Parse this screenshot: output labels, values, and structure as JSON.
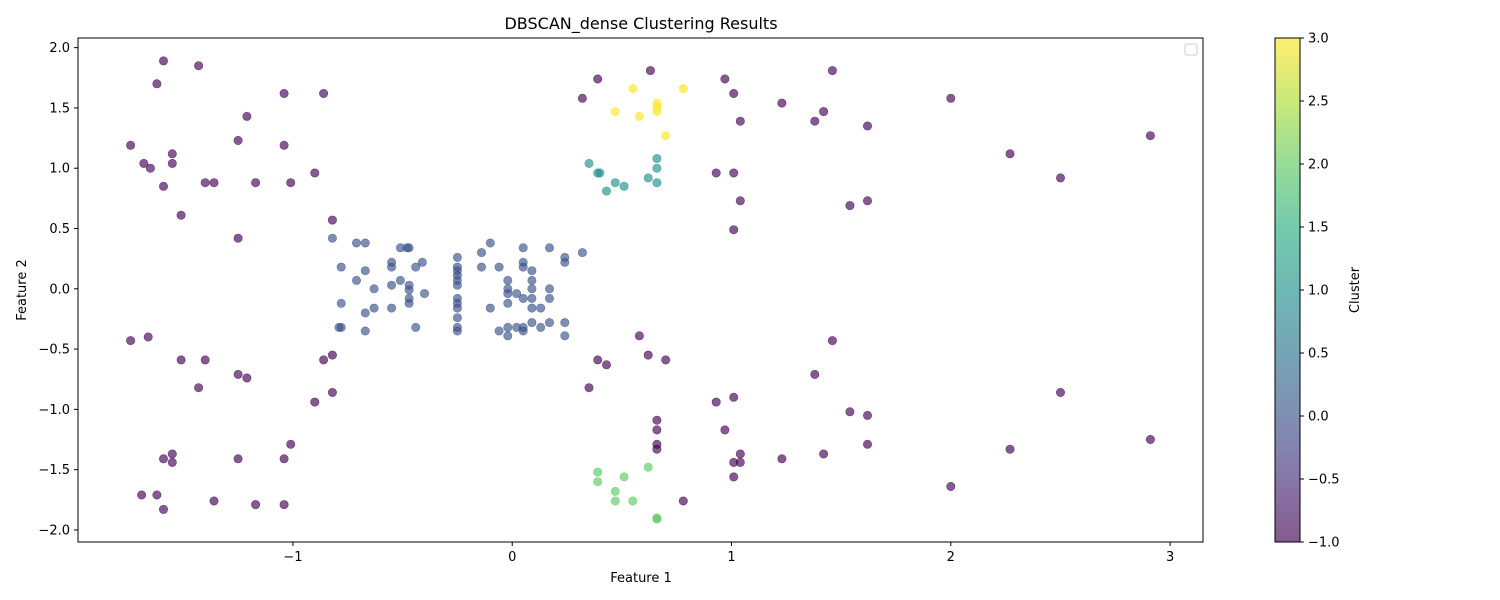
{
  "chart_data": {
    "type": "scatter",
    "title": "DBSCAN_dense Clustering Results",
    "xlabel": "Feature 1",
    "ylabel": "Feature 2",
    "xlim": [
      -1.98,
      3.15
    ],
    "ylim": [
      -2.1,
      2.08
    ],
    "xticks": [
      -1,
      0,
      1,
      2,
      3
    ],
    "yticks": [
      -2.0,
      -1.5,
      -1.0,
      -0.5,
      0.0,
      0.5,
      1.0,
      1.5,
      2.0
    ],
    "ytick_labels": [
      "−2.0",
      "−1.5",
      "−1.0",
      "−0.5",
      "0.0",
      "0.5",
      "1.0",
      "1.5",
      "2.0"
    ],
    "xtick_labels": [
      "−1",
      "0",
      "1",
      "2",
      "3"
    ],
    "grid": false,
    "legend": {
      "placement": "top-right",
      "entries": []
    },
    "colorbar": {
      "label": "Cluster",
      "range": [
        -1.0,
        3.0
      ],
      "ticks": [
        -1.0,
        -0.5,
        0.0,
        0.5,
        1.0,
        1.5,
        2.0,
        2.5,
        3.0
      ],
      "tick_labels": [
        "−1.0",
        "−0.5",
        "0.0",
        "0.5",
        "1.0",
        "1.5",
        "2.0",
        "2.5",
        "3.0"
      ],
      "colormap": "viridis"
    },
    "colors": {
      "-1": "#440154",
      "0": "#3b528b",
      "1": "#21918c",
      "2": "#5ec962",
      "3": "#fde725"
    },
    "marker_alpha": 0.65,
    "series": [
      {
        "cluster": -1,
        "points": [
          [
            -1.59,
            1.89
          ],
          [
            -1.43,
            1.85
          ],
          [
            -1.62,
            1.7
          ],
          [
            -1.21,
            1.43
          ],
          [
            -1.04,
            1.62
          ],
          [
            -0.86,
            1.62
          ],
          [
            -1.74,
            1.19
          ],
          [
            -1.55,
            1.12
          ],
          [
            -1.68,
            1.04
          ],
          [
            -1.55,
            1.04
          ],
          [
            -1.65,
            1.0
          ],
          [
            -1.25,
            1.23
          ],
          [
            -1.04,
            1.19
          ],
          [
            -0.9,
            0.96
          ],
          [
            -1.59,
            0.85
          ],
          [
            -1.4,
            0.88
          ],
          [
            -1.36,
            0.88
          ],
          [
            -1.17,
            0.88
          ],
          [
            -1.01,
            0.88
          ],
          [
            -1.51,
            0.61
          ],
          [
            -0.82,
            0.57
          ],
          [
            -1.25,
            0.42
          ],
          [
            0.39,
            1.74
          ],
          [
            0.63,
            1.81
          ],
          [
            0.32,
            1.58
          ],
          [
            0.97,
            1.74
          ],
          [
            1.01,
            1.62
          ],
          [
            1.23,
            1.54
          ],
          [
            1.42,
            1.47
          ],
          [
            1.38,
            1.39
          ],
          [
            1.04,
            1.39
          ],
          [
            1.46,
            1.81
          ],
          [
            1.62,
            1.35
          ],
          [
            2.0,
            1.58
          ],
          [
            2.91,
            1.27
          ],
          [
            2.27,
            1.12
          ],
          [
            2.5,
            0.92
          ],
          [
            0.93,
            0.96
          ],
          [
            1.01,
            0.96
          ],
          [
            1.04,
            0.73
          ],
          [
            1.54,
            0.69
          ],
          [
            1.62,
            0.73
          ],
          [
            1.01,
            0.49
          ],
          [
            -1.74,
            -0.43
          ],
          [
            -1.66,
            -0.4
          ],
          [
            -1.51,
            -0.59
          ],
          [
            -1.4,
            -0.59
          ],
          [
            -1.43,
            -0.82
          ],
          [
            -1.25,
            -0.71
          ],
          [
            -1.21,
            -0.74
          ],
          [
            -0.86,
            -0.59
          ],
          [
            -0.82,
            -0.55
          ],
          [
            -0.82,
            -0.86
          ],
          [
            -0.9,
            -0.94
          ],
          [
            -1.01,
            -1.29
          ],
          [
            -1.04,
            -1.41
          ],
          [
            -1.25,
            -1.41
          ],
          [
            -1.55,
            -1.37
          ],
          [
            -1.59,
            -1.41
          ],
          [
            -1.55,
            -1.44
          ],
          [
            -1.36,
            -1.76
          ],
          [
            -1.17,
            -1.79
          ],
          [
            -1.04,
            -1.79
          ],
          [
            -1.69,
            -1.71
          ],
          [
            -1.62,
            -1.71
          ],
          [
            -1.59,
            -1.83
          ],
          [
            0.58,
            -0.39
          ],
          [
            0.62,
            -0.55
          ],
          [
            0.39,
            -0.59
          ],
          [
            0.43,
            -0.63
          ],
          [
            0.7,
            -0.59
          ],
          [
            0.35,
            -0.82
          ],
          [
            1.46,
            -0.43
          ],
          [
            1.38,
            -0.71
          ],
          [
            2.5,
            -0.86
          ],
          [
            0.93,
            -0.94
          ],
          [
            1.01,
            -0.9
          ],
          [
            1.54,
            -1.02
          ],
          [
            1.62,
            -1.05
          ],
          [
            0.97,
            -1.17
          ],
          [
            0.66,
            -1.09
          ],
          [
            0.66,
            -1.17
          ],
          [
            0.66,
            -1.29
          ],
          [
            0.66,
            -1.33
          ],
          [
            1.04,
            -1.37
          ],
          [
            1.01,
            -1.44
          ],
          [
            1.04,
            -1.44
          ],
          [
            1.23,
            -1.41
          ],
          [
            1.42,
            -1.37
          ],
          [
            1.62,
            -1.29
          ],
          [
            1.01,
            -1.56
          ],
          [
            0.78,
            -1.76
          ],
          [
            2.27,
            -1.33
          ],
          [
            2.91,
            -1.25
          ],
          [
            2.0,
            -1.64
          ]
        ]
      },
      {
        "cluster": 0,
        "points": [
          [
            -0.82,
            0.42
          ],
          [
            -0.71,
            0.38
          ],
          [
            -0.67,
            0.38
          ],
          [
            -0.51,
            0.34
          ],
          [
            -0.47,
            0.34
          ],
          [
            -0.48,
            0.34
          ],
          [
            -0.78,
            0.18
          ],
          [
            -0.55,
            0.22
          ],
          [
            -0.55,
            0.18
          ],
          [
            -0.41,
            0.22
          ],
          [
            -0.44,
            0.18
          ],
          [
            -0.67,
            0.15
          ],
          [
            -0.71,
            0.07
          ],
          [
            -0.51,
            0.07
          ],
          [
            -0.55,
            0.03
          ],
          [
            -0.63,
            0.0
          ],
          [
            -0.47,
            0.03
          ],
          [
            -0.47,
            -0.01
          ],
          [
            -0.4,
            -0.04
          ],
          [
            -0.47,
            -0.08
          ],
          [
            -0.47,
            -0.12
          ],
          [
            -0.78,
            -0.12
          ],
          [
            -0.63,
            -0.16
          ],
          [
            -0.55,
            -0.16
          ],
          [
            -0.67,
            -0.2
          ],
          [
            -0.78,
            -0.32
          ],
          [
            -0.79,
            -0.32
          ],
          [
            -0.67,
            -0.35
          ],
          [
            -0.44,
            -0.32
          ],
          [
            -0.25,
            0.26
          ],
          [
            -0.25,
            0.18
          ],
          [
            -0.25,
            0.15
          ],
          [
            -0.25,
            0.11
          ],
          [
            -0.25,
            0.07
          ],
          [
            -0.25,
            0.03
          ],
          [
            -0.25,
            -0.08
          ],
          [
            -0.25,
            -0.12
          ],
          [
            -0.25,
            -0.16
          ],
          [
            -0.25,
            -0.24
          ],
          [
            -0.25,
            -0.32
          ],
          [
            -0.25,
            -0.35
          ],
          [
            -0.14,
            0.3
          ],
          [
            -0.1,
            0.38
          ],
          [
            -0.14,
            0.18
          ],
          [
            -0.06,
            0.18
          ],
          [
            -0.1,
            -0.16
          ],
          [
            -0.06,
            -0.35
          ],
          [
            0.05,
            0.34
          ],
          [
            0.17,
            0.34
          ],
          [
            0.24,
            0.26
          ],
          [
            0.24,
            0.22
          ],
          [
            0.32,
            0.3
          ],
          [
            0.05,
            0.22
          ],
          [
            0.05,
            0.18
          ],
          [
            0.09,
            0.15
          ],
          [
            -0.02,
            0.07
          ],
          [
            0.09,
            0.07
          ],
          [
            -0.02,
            0.0
          ],
          [
            -0.02,
            -0.04
          ],
          [
            0.02,
            -0.04
          ],
          [
            0.09,
            0.0
          ],
          [
            0.17,
            0.0
          ],
          [
            0.05,
            -0.08
          ],
          [
            0.09,
            -0.08
          ],
          [
            0.17,
            -0.08
          ],
          [
            -0.02,
            -0.12
          ],
          [
            0.09,
            -0.16
          ],
          [
            0.13,
            -0.16
          ],
          [
            0.09,
            -0.28
          ],
          [
            0.17,
            -0.28
          ],
          [
            0.24,
            -0.28
          ],
          [
            -0.02,
            -0.32
          ],
          [
            0.02,
            -0.32
          ],
          [
            0.05,
            -0.32
          ],
          [
            0.13,
            -0.32
          ],
          [
            0.05,
            -0.35
          ],
          [
            -0.02,
            -0.39
          ],
          [
            0.24,
            -0.39
          ]
        ]
      },
      {
        "cluster": 1,
        "points": [
          [
            0.35,
            1.04
          ],
          [
            0.39,
            0.96
          ],
          [
            0.4,
            0.96
          ],
          [
            0.66,
            1.08
          ],
          [
            0.66,
            1.0
          ],
          [
            0.62,
            0.92
          ],
          [
            0.47,
            0.88
          ],
          [
            0.51,
            0.85
          ],
          [
            0.66,
            0.88
          ],
          [
            0.43,
            0.81
          ]
        ]
      },
      {
        "cluster": 2,
        "points": [
          [
            0.39,
            -1.52
          ],
          [
            0.39,
            -1.6
          ],
          [
            0.51,
            -1.56
          ],
          [
            0.62,
            -1.48
          ],
          [
            0.47,
            -1.68
          ],
          [
            0.47,
            -1.76
          ],
          [
            0.55,
            -1.76
          ],
          [
            0.66,
            -1.91
          ],
          [
            0.66,
            -1.9
          ]
        ]
      },
      {
        "cluster": 3,
        "points": [
          [
            0.55,
            1.66
          ],
          [
            0.78,
            1.66
          ],
          [
            0.66,
            1.54
          ],
          [
            0.66,
            1.51
          ],
          [
            0.66,
            1.47
          ],
          [
            0.47,
            1.47
          ],
          [
            0.58,
            1.43
          ],
          [
            0.7,
            1.27
          ]
        ]
      }
    ]
  }
}
